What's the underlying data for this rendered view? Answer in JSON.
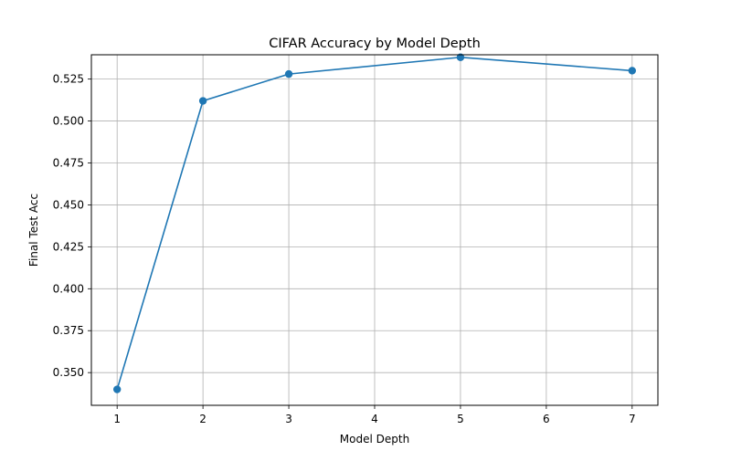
{
  "chart_data": {
    "type": "line",
    "title": "CIFAR Accuracy by Model Depth",
    "xlabel": "Model Depth",
    "ylabel": "Final Test Acc",
    "xlim": [
      0.7,
      7.3
    ],
    "ylim": [
      0.3305,
      0.5395
    ],
    "xticks": [
      1,
      2,
      3,
      4,
      5,
      6,
      7
    ],
    "yticks": [
      0.35,
      0.375,
      0.4,
      0.425,
      0.45,
      0.475,
      0.5,
      0.525
    ],
    "ytick_labels": [
      "0.350",
      "0.375",
      "0.400",
      "0.425",
      "0.450",
      "0.475",
      "0.500",
      "0.525"
    ],
    "grid": true,
    "series": [
      {
        "color": "#1f77b4",
        "marker": "circle",
        "x": [
          1,
          2,
          3,
          5,
          7
        ],
        "y": [
          0.34,
          0.512,
          0.528,
          0.538,
          0.53
        ]
      }
    ]
  }
}
